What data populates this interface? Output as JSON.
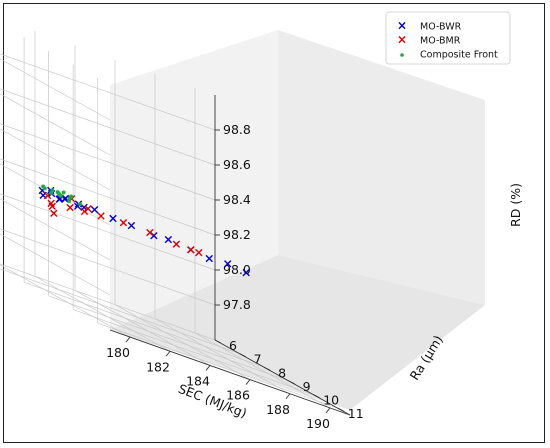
{
  "chart_data": {
    "type": "scatter",
    "projection": "3d",
    "xlabel": "SEC (MJ/kg)",
    "ylabel": "Ra (μm)",
    "zlabel": "RD (%)",
    "xlim": [
      179,
      191
    ],
    "ylim": [
      6,
      11.5
    ],
    "zlim": [
      97.6,
      99.0
    ],
    "xticks": [
      "180",
      "182",
      "184",
      "186",
      "188",
      "190"
    ],
    "yticks": [
      "6",
      "7",
      "8",
      "9",
      "10",
      "11"
    ],
    "zticks": [
      "97.8",
      "98.0",
      "98.2",
      "98.4",
      "98.6",
      "98.8"
    ],
    "grid": true,
    "legend_position": "top-right",
    "series": [
      {
        "name": "MO-BWR",
        "color": "#0000cc",
        "marker": "x",
        "points": [
          [
            180.2,
            7.8,
            98.13
          ],
          [
            180.4,
            7.6,
            98.15
          ],
          [
            180.5,
            7.9,
            98.16
          ],
          [
            180.7,
            7.7,
            98.17
          ],
          [
            180.8,
            8.0,
            98.15
          ],
          [
            181.0,
            7.8,
            98.14
          ],
          [
            181.2,
            7.9,
            98.16
          ],
          [
            181.4,
            7.7,
            98.15
          ],
          [
            181.6,
            8.1,
            98.16
          ],
          [
            181.8,
            7.9,
            98.14
          ],
          [
            182.0,
            8.0,
            98.15
          ],
          [
            182.4,
            8.1,
            98.16
          ],
          [
            183.2,
            8.2,
            98.15
          ],
          [
            184.0,
            8.3,
            98.15
          ],
          [
            185.0,
            8.4,
            98.14
          ],
          [
            185.6,
            8.5,
            98.15
          ],
          [
            186.6,
            8.6,
            98.14
          ],
          [
            187.4,
            8.7,
            98.13
          ],
          [
            188.2,
            8.8,
            98.14
          ],
          [
            189.0,
            8.9,
            98.13
          ]
        ]
      },
      {
        "name": "MO-BMR",
        "color": "#dd0000",
        "marker": "x",
        "points": [
          [
            180.3,
            7.9,
            98.14
          ],
          [
            180.6,
            7.8,
            98.1
          ],
          [
            180.9,
            7.6,
            98.08
          ],
          [
            181.1,
            7.5,
            98.04
          ],
          [
            181.3,
            8.0,
            98.12
          ],
          [
            181.5,
            7.9,
            98.17
          ],
          [
            181.9,
            8.1,
            98.13
          ],
          [
            182.2,
            8.0,
            98.15
          ],
          [
            182.6,
            8.2,
            98.14
          ],
          [
            183.6,
            8.3,
            98.15
          ],
          [
            184.8,
            8.4,
            98.15
          ],
          [
            186.0,
            8.5,
            98.14
          ],
          [
            186.6,
            8.6,
            98.14
          ],
          [
            187.0,
            8.6,
            98.14
          ]
        ]
      },
      {
        "name": "Composite Front",
        "color": "#22aa44",
        "marker": "o",
        "points": [
          [
            180.2,
            7.8,
            98.18
          ],
          [
            180.4,
            7.7,
            98.17
          ],
          [
            180.6,
            7.8,
            98.16
          ],
          [
            180.8,
            7.9,
            98.18
          ],
          [
            181.0,
            7.8,
            98.17
          ],
          [
            181.2,
            7.7,
            98.16
          ],
          [
            181.4,
            7.9,
            98.17
          ],
          [
            181.6,
            7.8,
            98.18
          ],
          [
            181.8,
            8.0,
            98.16
          ],
          [
            181.1,
            7.9,
            98.19
          ],
          [
            180.9,
            7.6,
            98.17
          ],
          [
            181.5,
            7.8,
            98.15
          ]
        ]
      }
    ]
  }
}
